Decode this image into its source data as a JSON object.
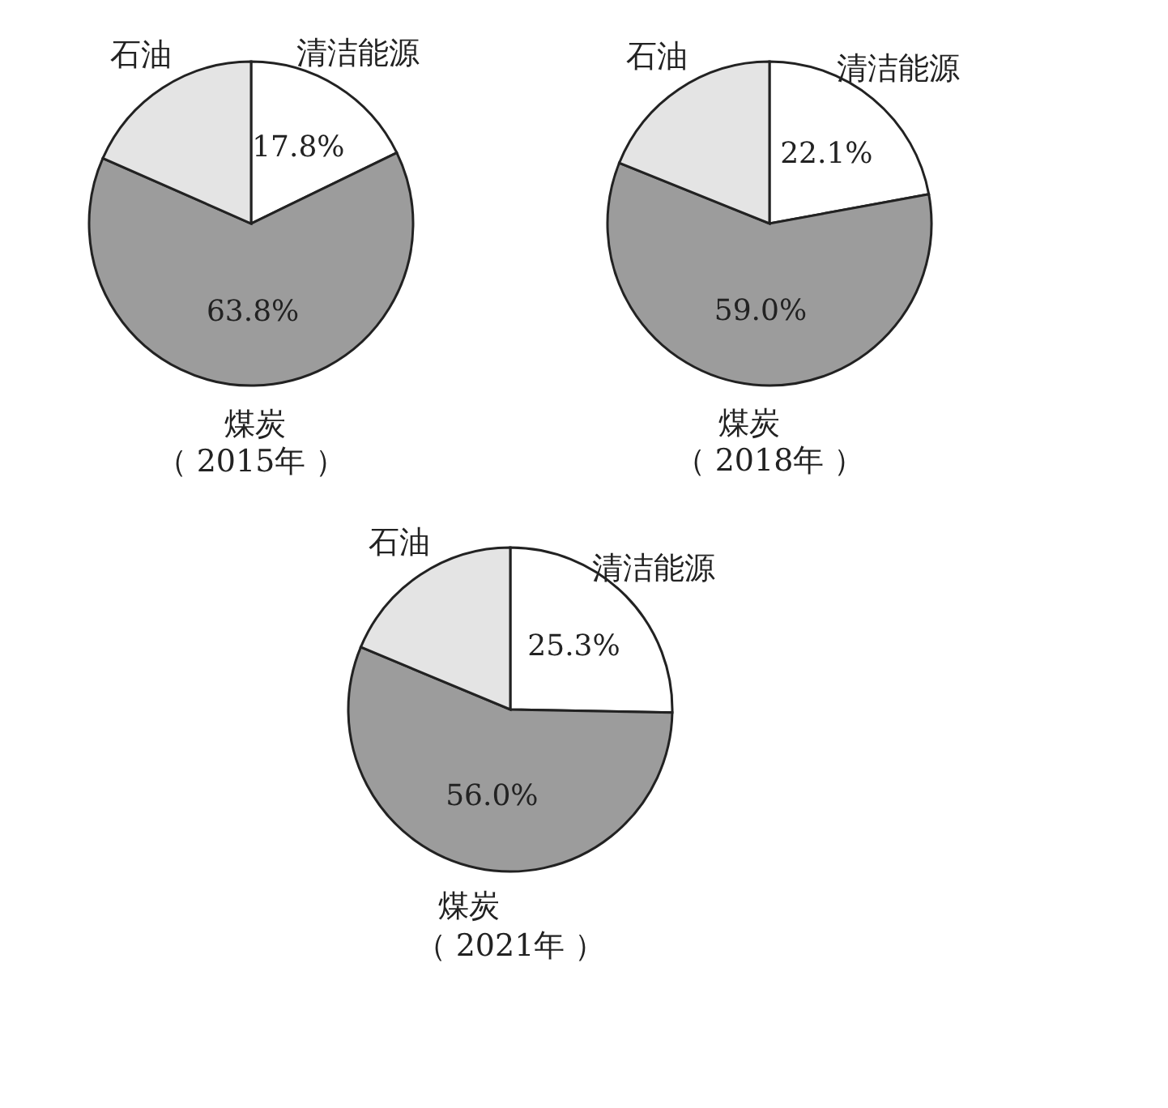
{
  "chart_data": [
    {
      "type": "pie",
      "title": "（ 2015年 ）",
      "categories": [
        "清洁能源",
        "煤炭",
        "石油"
      ],
      "values": [
        17.8,
        63.8,
        18.4
      ],
      "colors": [
        "#ffffff",
        "#9c9c9c",
        "#e4e4e4"
      ],
      "value_labels": [
        "17.8%",
        "63.8%",
        null
      ],
      "legend": false
    },
    {
      "type": "pie",
      "title": "（ 2018年 ）",
      "categories": [
        "清洁能源",
        "煤炭",
        "石油"
      ],
      "values": [
        22.1,
        59.0,
        18.9
      ],
      "colors": [
        "#ffffff",
        "#9c9c9c",
        "#e4e4e4"
      ],
      "value_labels": [
        "22.1%",
        "59.0%",
        null
      ],
      "legend": false
    },
    {
      "type": "pie",
      "title": "（ 2021年 ）",
      "categories": [
        "清洁能源",
        "煤炭",
        "石油"
      ],
      "values": [
        25.3,
        56.0,
        18.7
      ],
      "colors": [
        "#ffffff",
        "#9c9c9c",
        "#e4e4e4"
      ],
      "value_labels": [
        "25.3%",
        "56.0%",
        null
      ],
      "legend": false
    }
  ]
}
